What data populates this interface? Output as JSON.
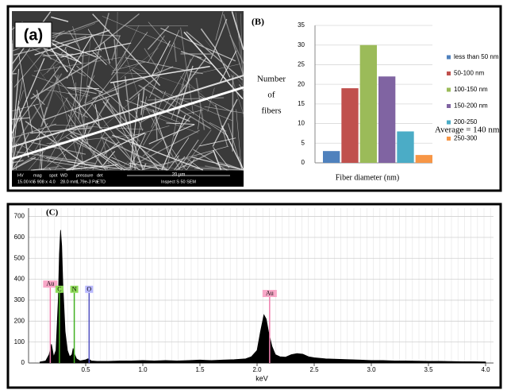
{
  "panel_a": {
    "label": "(a)",
    "info_bar": {
      "headers": [
        "HV",
        "mag",
        "spot",
        "WD",
        "pressure",
        "det"
      ],
      "values": [
        "15.00 kV",
        "5 908 x",
        "4.0",
        "28.0 mm",
        "1.79e-3 Pa",
        "ETD"
      ],
      "scale": "20 µm",
      "instrument": "Inspect S 50 SEM"
    }
  },
  "chart_data": [
    {
      "type": "bar",
      "title": "(B)",
      "y_label": [
        "Number",
        "of",
        "fibers"
      ],
      "x_label": "Fiber diameter (nm)",
      "annotation": "Average = 140 nm",
      "categories": [
        "less than 50 nm",
        "50-100 nm",
        "100-150 nm",
        "150-200 nm",
        "200-250",
        "250-300"
      ],
      "values": [
        3,
        19,
        30,
        22,
        8,
        2
      ],
      "colors": [
        "#4f81bd",
        "#c0504d",
        "#9bbb59",
        "#8064a2",
        "#4bacc6",
        "#f79646"
      ],
      "ylim": [
        0,
        35
      ],
      "yticks": [
        0,
        5,
        10,
        15,
        20,
        25,
        30,
        35
      ],
      "grid": true,
      "legend": "right"
    },
    {
      "type": "area",
      "title": "(C)",
      "x_label": "keV",
      "color": "#000000",
      "x": [
        0.1,
        0.15,
        0.18,
        0.2,
        0.22,
        0.24,
        0.26,
        0.27,
        0.28,
        0.29,
        0.3,
        0.32,
        0.34,
        0.36,
        0.38,
        0.39,
        0.4,
        0.42,
        0.45,
        0.5,
        0.52,
        0.55,
        0.6,
        0.7,
        0.8,
        0.9,
        1.0,
        1.1,
        1.2,
        1.3,
        1.4,
        1.5,
        1.6,
        1.7,
        1.8,
        1.9,
        1.95,
        2.0,
        2.03,
        2.06,
        2.08,
        2.1,
        2.13,
        2.16,
        2.2,
        2.25,
        2.3,
        2.35,
        2.4,
        2.45,
        2.5,
        2.6,
        2.7,
        2.8,
        2.9,
        3.0,
        3.1,
        3.2,
        3.3,
        3.4,
        3.5,
        3.6,
        3.7,
        3.8,
        3.9,
        4.0
      ],
      "values": [
        5,
        10,
        40,
        90,
        30,
        60,
        300,
        520,
        635,
        560,
        380,
        150,
        60,
        30,
        40,
        70,
        45,
        20,
        10,
        15,
        20,
        10,
        8,
        8,
        10,
        10,
        12,
        10,
        12,
        10,
        12,
        14,
        12,
        14,
        16,
        20,
        30,
        60,
        150,
        230,
        210,
        150,
        80,
        40,
        30,
        28,
        40,
        45,
        42,
        30,
        25,
        20,
        18,
        16,
        14,
        12,
        12,
        10,
        10,
        9,
        8,
        8,
        7,
        6,
        6,
        5
      ],
      "xlim": [
        0,
        4.0
      ],
      "ylim": [
        0,
        740
      ],
      "xticks": [
        0.5,
        {
          "value": 1,
          "label": "1.0"
        },
        1.5,
        {
          "value": 2,
          "label": "2.0"
        },
        2.5,
        {
          "value": 3,
          "label": "3.0"
        },
        3.5,
        {
          "value": 4,
          "label": "4.0"
        }
      ],
      "yticks": [
        0,
        100,
        200,
        300,
        400,
        500,
        600,
        700
      ],
      "grid": true,
      "peak_labels": [
        {
          "label": "Au",
          "x": 0.19,
          "height": 360,
          "color": "#f9a8c8",
          "line": "#f080b0"
        },
        {
          "label": "C",
          "x": 0.27,
          "height": 335,
          "color": "#8fdc5a",
          "line": "#40b020"
        },
        {
          "label": "N",
          "x": 0.4,
          "height": 335,
          "color": "#8fdc5a",
          "line": "#40b020"
        },
        {
          "label": "O",
          "x": 0.53,
          "height": 335,
          "color": "#b8b8ff",
          "line": "#5050c0"
        },
        {
          "label": "Au",
          "x": 2.11,
          "height": 315,
          "color": "#f9a8c8",
          "line": "#f080b0"
        }
      ]
    }
  ]
}
